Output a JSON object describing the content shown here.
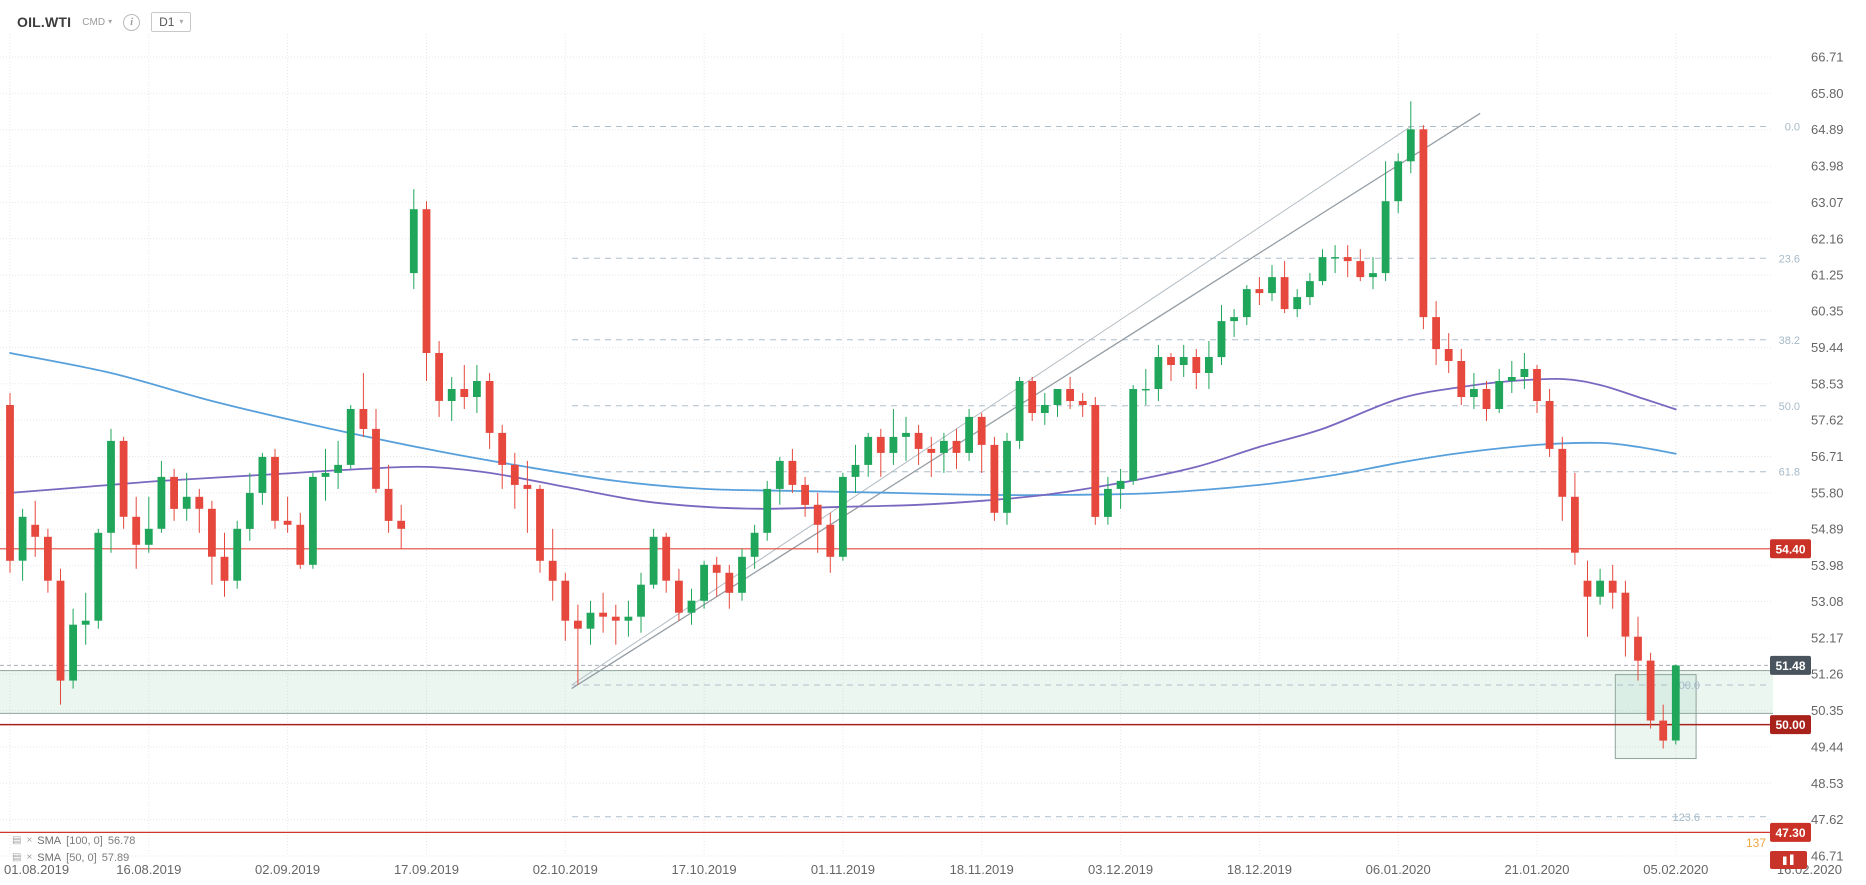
{
  "header": {
    "symbol": "OIL.WTI",
    "market": "CMD",
    "timeframe": "D1"
  },
  "chart_data": {
    "type": "candlestick",
    "symbol": "OIL.WTI",
    "timeframe": "D1",
    "colors": {
      "up": "#1fa65a",
      "down": "#e6483d",
      "sma100": "#58a0dc",
      "sma50": "#7a68c0",
      "grid": "#e7e7e7",
      "fib": "#aebecb",
      "zone_fill": "rgba(125,195,160,0.15)"
    },
    "y_axis": {
      "min": 46.71,
      "max": 66.71,
      "labels": [
        "66.71",
        "65.80",
        "64.89",
        "63.98",
        "63.07",
        "62.16",
        "61.25",
        "60.35",
        "59.44",
        "58.53",
        "57.62",
        "56.71",
        "55.80",
        "54.89",
        "53.98",
        "53.08",
        "52.17",
        "51.26",
        "50.35",
        "49.44",
        "48.53",
        "47.62",
        "46.71"
      ]
    },
    "x_axis": {
      "ticks": [
        {
          "label": "01.08.2019",
          "index": 0
        },
        {
          "label": "16.08.2019",
          "index": 11
        },
        {
          "label": "02.09.2019",
          "index": 22
        },
        {
          "label": "17.09.2019",
          "index": 33
        },
        {
          "label": "02.10.2019",
          "index": 44
        },
        {
          "label": "17.10.2019",
          "index": 55
        },
        {
          "label": "01.11.2019",
          "index": 66
        },
        {
          "label": "18.11.2019",
          "index": 77
        },
        {
          "label": "03.12.2019",
          "index": 88
        },
        {
          "label": "18.12.2019",
          "index": 99
        },
        {
          "label": "06.01.2020",
          "index": 110
        },
        {
          "label": "21.01.2020",
          "index": 121
        },
        {
          "label": "05.02.2020",
          "index": 132
        },
        {
          "label": "16.02.2020",
          "index": 142
        }
      ]
    },
    "candles": [
      [
        58.0,
        58.3,
        53.8,
        54.1
      ],
      [
        54.1,
        55.4,
        53.6,
        55.2
      ],
      [
        55.0,
        55.6,
        54.2,
        54.7
      ],
      [
        54.7,
        54.9,
        53.3,
        53.6
      ],
      [
        53.6,
        53.9,
        50.5,
        51.1
      ],
      [
        51.1,
        52.9,
        50.9,
        52.5
      ],
      [
        52.5,
        53.3,
        52.0,
        52.6
      ],
      [
        52.6,
        54.9,
        52.4,
        54.8
      ],
      [
        54.8,
        57.4,
        54.3,
        57.1
      ],
      [
        57.1,
        57.2,
        54.9,
        55.2
      ],
      [
        55.2,
        55.7,
        53.9,
        54.5
      ],
      [
        54.5,
        55.7,
        54.3,
        54.9
      ],
      [
        54.9,
        56.6,
        54.8,
        56.2
      ],
      [
        56.2,
        56.4,
        55.1,
        55.4
      ],
      [
        55.4,
        56.3,
        55.1,
        55.7
      ],
      [
        55.7,
        55.9,
        54.8,
        55.4
      ],
      [
        55.4,
        55.6,
        53.5,
        54.2
      ],
      [
        54.2,
        54.8,
        53.2,
        53.6
      ],
      [
        53.6,
        55.1,
        53.4,
        54.9
      ],
      [
        54.9,
        56.3,
        54.6,
        55.8
      ],
      [
        55.8,
        56.8,
        55.5,
        56.7
      ],
      [
        56.7,
        56.9,
        54.9,
        55.1
      ],
      [
        55.1,
        55.7,
        54.8,
        55.0
      ],
      [
        55.0,
        55.3,
        53.9,
        54.0
      ],
      [
        54.0,
        56.3,
        53.9,
        56.2
      ],
      [
        56.2,
        56.9,
        55.6,
        56.3
      ],
      [
        56.3,
        57.1,
        55.9,
        56.5
      ],
      [
        56.5,
        58.0,
        56.4,
        57.9
      ],
      [
        57.9,
        58.8,
        57.2,
        57.4
      ],
      [
        57.4,
        57.9,
        55.8,
        55.9
      ],
      [
        55.9,
        56.5,
        54.8,
        55.1
      ],
      [
        55.1,
        55.5,
        54.4,
        54.9
      ],
      [
        61.3,
        63.4,
        60.9,
        62.9
      ],
      [
        62.9,
        63.1,
        58.6,
        59.3
      ],
      [
        59.3,
        59.6,
        57.7,
        58.1
      ],
      [
        58.1,
        58.7,
        57.6,
        58.4
      ],
      [
        58.4,
        59.0,
        57.9,
        58.2
      ],
      [
        58.2,
        59.0,
        57.8,
        58.6
      ],
      [
        58.6,
        58.8,
        56.9,
        57.3
      ],
      [
        57.3,
        57.5,
        55.9,
        56.5
      ],
      [
        56.5,
        56.8,
        55.4,
        56.0
      ],
      [
        56.0,
        56.6,
        54.8,
        55.9
      ],
      [
        55.9,
        56.0,
        53.8,
        54.1
      ],
      [
        54.1,
        54.9,
        53.1,
        53.6
      ],
      [
        53.6,
        53.8,
        52.1,
        52.6
      ],
      [
        52.6,
        53.0,
        51.0,
        52.4
      ],
      [
        52.4,
        53.1,
        52.0,
        52.8
      ],
      [
        52.8,
        53.3,
        52.3,
        52.7
      ],
      [
        52.7,
        53.0,
        52.0,
        52.6
      ],
      [
        52.6,
        53.1,
        52.2,
        52.7
      ],
      [
        52.7,
        53.8,
        52.3,
        53.5
      ],
      [
        53.5,
        54.9,
        53.4,
        54.7
      ],
      [
        54.7,
        54.8,
        53.3,
        53.6
      ],
      [
        53.6,
        53.9,
        52.6,
        52.8
      ],
      [
        52.8,
        53.4,
        52.5,
        53.1
      ],
      [
        53.1,
        54.1,
        52.9,
        54.0
      ],
      [
        54.0,
        54.2,
        53.2,
        53.8
      ],
      [
        53.8,
        54.0,
        52.9,
        53.3
      ],
      [
        53.3,
        54.4,
        53.1,
        54.2
      ],
      [
        54.2,
        55.0,
        53.9,
        54.8
      ],
      [
        54.8,
        56.1,
        54.6,
        55.9
      ],
      [
        55.9,
        56.7,
        55.5,
        56.6
      ],
      [
        56.6,
        56.9,
        55.8,
        56.0
      ],
      [
        56.0,
        56.2,
        55.2,
        55.5
      ],
      [
        55.5,
        55.8,
        54.3,
        55.0
      ],
      [
        55.0,
        55.3,
        53.8,
        54.2
      ],
      [
        54.2,
        56.3,
        54.1,
        56.2
      ],
      [
        56.2,
        57.0,
        55.8,
        56.5
      ],
      [
        56.5,
        57.3,
        56.2,
        57.2
      ],
      [
        57.2,
        57.4,
        56.2,
        56.8
      ],
      [
        56.8,
        57.9,
        56.5,
        57.2
      ],
      [
        57.2,
        57.7,
        56.6,
        57.3
      ],
      [
        57.3,
        57.5,
        56.5,
        56.9
      ],
      [
        56.9,
        57.2,
        56.2,
        56.8
      ],
      [
        56.8,
        57.3,
        56.3,
        57.1
      ],
      [
        57.1,
        57.4,
        56.4,
        56.8
      ],
      [
        56.8,
        57.9,
        56.6,
        57.7
      ],
      [
        57.7,
        57.8,
        56.3,
        57.0
      ],
      [
        57.0,
        57.2,
        55.1,
        55.3
      ],
      [
        55.3,
        57.3,
        55.0,
        57.1
      ],
      [
        57.1,
        58.7,
        56.9,
        58.6
      ],
      [
        58.6,
        58.7,
        57.6,
        57.8
      ],
      [
        57.8,
        58.3,
        57.5,
        58.0
      ],
      [
        58.0,
        58.4,
        57.7,
        58.4
      ],
      [
        58.4,
        58.7,
        57.9,
        58.1
      ],
      [
        58.1,
        58.3,
        57.7,
        58.0
      ],
      [
        58.0,
        58.2,
        55.0,
        55.2
      ],
      [
        55.2,
        56.2,
        55.0,
        55.9
      ],
      [
        55.9,
        56.4,
        55.4,
        56.1
      ],
      [
        56.1,
        58.5,
        56.0,
        58.4
      ],
      [
        58.4,
        58.9,
        58.0,
        58.4
      ],
      [
        58.4,
        59.5,
        58.1,
        59.2
      ],
      [
        59.2,
        59.3,
        58.6,
        59.0
      ],
      [
        59.0,
        59.5,
        58.7,
        59.2
      ],
      [
        59.2,
        59.4,
        58.4,
        58.8
      ],
      [
        58.8,
        59.6,
        58.4,
        59.2
      ],
      [
        59.2,
        60.5,
        59.0,
        60.1
      ],
      [
        60.1,
        60.4,
        59.7,
        60.2
      ],
      [
        60.2,
        61.0,
        60.0,
        60.9
      ],
      [
        60.9,
        61.2,
        60.5,
        60.8
      ],
      [
        60.8,
        61.5,
        60.6,
        61.2
      ],
      [
        61.2,
        61.6,
        60.3,
        60.4
      ],
      [
        60.4,
        60.9,
        60.2,
        60.7
      ],
      [
        60.7,
        61.3,
        60.5,
        61.1
      ],
      [
        61.1,
        61.9,
        61.0,
        61.7
      ],
      [
        61.7,
        62.0,
        61.3,
        61.7
      ],
      [
        61.7,
        62.0,
        61.2,
        61.6
      ],
      [
        61.6,
        61.9,
        61.1,
        61.2
      ],
      [
        61.2,
        61.7,
        60.9,
        61.3
      ],
      [
        61.3,
        64.1,
        61.1,
        63.1
      ],
      [
        63.1,
        64.3,
        62.8,
        64.1
      ],
      [
        64.1,
        65.6,
        63.8,
        64.9
      ],
      [
        64.9,
        65.0,
        59.9,
        60.2
      ],
      [
        60.2,
        60.6,
        59.0,
        59.4
      ],
      [
        59.4,
        59.8,
        58.8,
        59.1
      ],
      [
        59.1,
        59.4,
        58.0,
        58.2
      ],
      [
        58.2,
        58.8,
        57.9,
        58.4
      ],
      [
        58.4,
        58.6,
        57.6,
        57.9
      ],
      [
        57.9,
        58.9,
        57.8,
        58.6
      ],
      [
        58.6,
        59.1,
        58.3,
        58.7
      ],
      [
        58.7,
        59.3,
        58.4,
        58.9
      ],
      [
        58.9,
        59.0,
        57.8,
        58.1
      ],
      [
        58.1,
        58.4,
        56.7,
        56.9
      ],
      [
        56.9,
        57.2,
        55.1,
        55.7
      ],
      [
        55.7,
        56.3,
        54.0,
        54.3
      ],
      [
        53.6,
        54.1,
        52.2,
        53.2
      ],
      [
        53.2,
        53.9,
        53.0,
        53.6
      ],
      [
        53.6,
        54.0,
        52.9,
        53.3
      ],
      [
        53.3,
        53.6,
        51.7,
        52.2
      ],
      [
        52.2,
        52.7,
        51.1,
        51.6
      ],
      [
        51.6,
        51.8,
        49.9,
        50.1
      ],
      [
        50.1,
        50.5,
        49.4,
        49.6
      ],
      [
        49.6,
        51.5,
        49.5,
        51.48
      ]
    ],
    "overlays": {
      "sma100": {
        "color": "#58a0dc",
        "points": [
          [
            0,
            59.3
          ],
          [
            8,
            58.8
          ],
          [
            16,
            58.1
          ],
          [
            24,
            57.5
          ],
          [
            33,
            56.9
          ],
          [
            40,
            56.5
          ],
          [
            48,
            56.1
          ],
          [
            55,
            55.9
          ],
          [
            62,
            55.85
          ],
          [
            70,
            55.8
          ],
          [
            77,
            55.75
          ],
          [
            84,
            55.75
          ],
          [
            91,
            55.8
          ],
          [
            99,
            56.0
          ],
          [
            105,
            56.25
          ],
          [
            110,
            56.55
          ],
          [
            115,
            56.8
          ],
          [
            121,
            57.0
          ],
          [
            126,
            57.05
          ],
          [
            129,
            56.95
          ],
          [
            132,
            56.78
          ]
        ]
      },
      "sma50": {
        "color": "#7a68c0",
        "points": [
          [
            0,
            55.8
          ],
          [
            6,
            55.95
          ],
          [
            12,
            56.1
          ],
          [
            20,
            56.25
          ],
          [
            28,
            56.4
          ],
          [
            33,
            56.45
          ],
          [
            38,
            56.3
          ],
          [
            44,
            55.95
          ],
          [
            50,
            55.6
          ],
          [
            55,
            55.45
          ],
          [
            60,
            55.4
          ],
          [
            66,
            55.45
          ],
          [
            72,
            55.5
          ],
          [
            77,
            55.6
          ],
          [
            82,
            55.75
          ],
          [
            88,
            56.05
          ],
          [
            94,
            56.45
          ],
          [
            99,
            56.95
          ],
          [
            104,
            57.4
          ],
          [
            110,
            58.15
          ],
          [
            115,
            58.45
          ],
          [
            119,
            58.6
          ],
          [
            123,
            58.65
          ],
          [
            126,
            58.5
          ],
          [
            129,
            58.2
          ],
          [
            132,
            57.89
          ]
        ]
      },
      "trendline": {
        "from": [
          44.5,
          50.9
        ],
        "to": [
          116.5,
          65.3
        ]
      },
      "fib_diagonal": {
        "from": [
          44.5,
          50.99
        ],
        "to": [
          111,
          64.97
        ]
      },
      "fibonacci": {
        "levels": [
          {
            "label": "0.0",
            "price": 64.97,
            "label_inset": false
          },
          {
            "label": "23.6",
            "price": 61.67,
            "label_inset": false
          },
          {
            "label": "38.2",
            "price": 59.63,
            "label_inset": false
          },
          {
            "label": "50.0",
            "price": 57.98,
            "label_inset": false
          },
          {
            "label": "61.8",
            "price": 56.33,
            "label_inset": false
          },
          {
            "label": "100.0",
            "price": 50.99,
            "label_inset": true
          },
          {
            "label": "123.6",
            "price": 47.69,
            "label_inset": true
          }
        ]
      },
      "hlines": [
        {
          "price": 54.4,
          "label": "54.40",
          "color": "#e2483b",
          "badge": "#cb3227",
          "width": 1.2
        },
        {
          "price": 50.0,
          "label": "50.00",
          "color": "#a8211b",
          "badge": "#a8211b",
          "width": 1.5
        },
        {
          "price": 47.3,
          "label": "47.30",
          "color": "#cf372b",
          "badge": "#cb3227",
          "width": 1.2
        }
      ],
      "current_price": {
        "value": "51.48",
        "price": 51.48,
        "badge_color": "#4a545e"
      },
      "zones": [
        {
          "kind": "band",
          "price_top": 51.35,
          "price_bottom": 50.28
        },
        {
          "kind": "box",
          "price_top": 51.25,
          "price_bottom": 49.15,
          "index_from": 127.2,
          "index_to": 133.6
        }
      ],
      "note": "137"
    },
    "legend": [
      {
        "name": "SMA",
        "params": "[100, 0]",
        "value": "56.78"
      },
      {
        "name": "SMA",
        "params": "[50, 0]",
        "value": "57.89"
      }
    ]
  }
}
